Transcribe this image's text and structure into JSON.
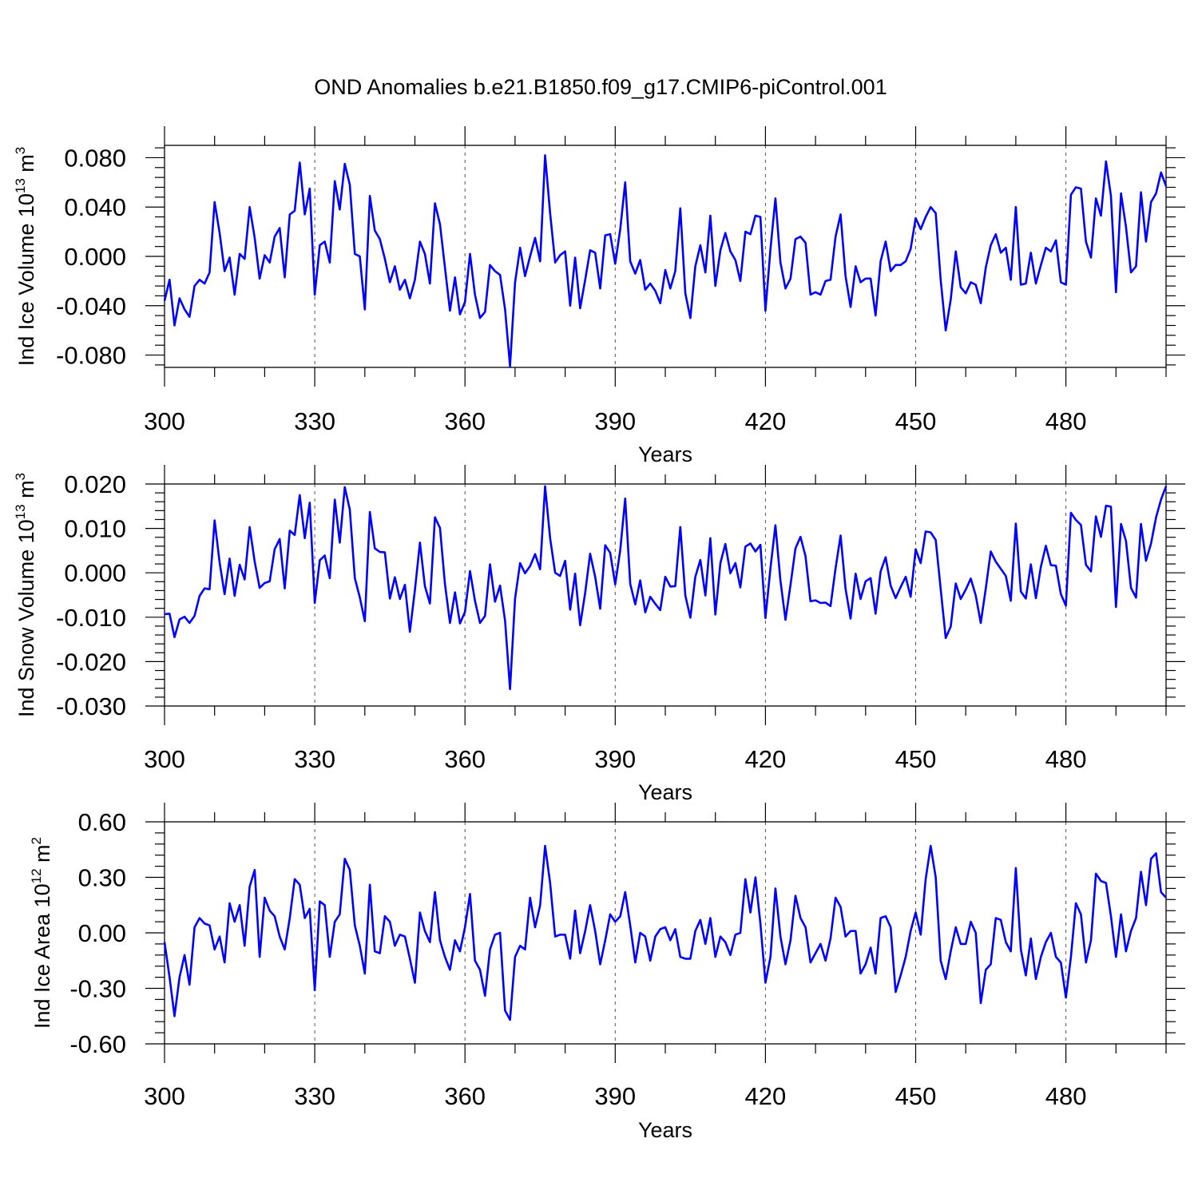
{
  "chart_data": [
    {
      "type": "line",
      "title": "OND Anomalies b.e21.B1850.f09_g17.CMIP6-piControl.001",
      "ylabel": "Ind Ice Volume 10",
      "ylabel_exp": "13",
      "ylabel_unit": " m",
      "ylabel_unit_exp": "3",
      "xlabel": "Years",
      "xlim": [
        300,
        500
      ],
      "ylim": [
        -0.09,
        0.09
      ],
      "xticks": [
        300,
        330,
        360,
        390,
        420,
        450,
        480
      ],
      "xtick_labels": [
        "300",
        "330",
        "360",
        "390",
        "420",
        "450",
        "480"
      ],
      "yticks": [
        0.08,
        0.04,
        0.0,
        -0.04,
        -0.08
      ],
      "ytick_labels": [
        "0.080",
        "0.040",
        "0.000",
        "-0.040",
        "-0.080"
      ],
      "grid": "vertical-dashed",
      "series": [
        {
          "name": "Ind Ice Volume",
          "color": "#0000ff",
          "x_start": 300,
          "x_step": 1,
          "values": [
            -0.036,
            -0.019,
            -0.056,
            -0.034,
            -0.043,
            -0.049,
            -0.024,
            -0.019,
            -0.022,
            -0.013,
            0.044,
            0.019,
            -0.012,
            -0.001,
            -0.031,
            0.002,
            -0.002,
            0.04,
            0.015,
            -0.018,
            0.001,
            -0.005,
            0.016,
            0.023,
            -0.017,
            0.034,
            0.037,
            0.076,
            0.034,
            0.055,
            -0.031,
            0.009,
            0.012,
            -0.005,
            0.061,
            0.038,
            0.075,
            0.058,
            0.002,
            0.0,
            -0.043,
            0.049,
            0.021,
            0.014,
            -0.002,
            -0.021,
            -0.008,
            -0.027,
            -0.019,
            -0.034,
            -0.019,
            0.012,
            0.002,
            -0.022,
            0.043,
            0.026,
            -0.009,
            -0.044,
            -0.017,
            -0.047,
            -0.037,
            0.002,
            -0.031,
            -0.05,
            -0.045,
            -0.007,
            -0.012,
            -0.015,
            -0.043,
            -0.089,
            -0.021,
            0.007,
            -0.016,
            0.0,
            0.015,
            -0.004,
            0.082,
            0.035,
            -0.005,
            0.001,
            0.004,
            -0.04,
            -0.001,
            -0.042,
            -0.019,
            0.005,
            0.003,
            -0.026,
            0.017,
            0.018,
            -0.006,
            0.022,
            0.06,
            -0.004,
            -0.014,
            -0.003,
            -0.027,
            -0.022,
            -0.028,
            -0.038,
            -0.011,
            -0.026,
            -0.012,
            0.039,
            -0.03,
            -0.05,
            -0.008,
            0.009,
            -0.013,
            0.033,
            -0.024,
            0.005,
            0.019,
            0.004,
            -0.003,
            -0.02,
            0.02,
            0.018,
            0.033,
            0.032,
            -0.044,
            0.006,
            0.047,
            -0.005,
            -0.026,
            -0.018,
            0.014,
            0.016,
            0.011,
            -0.031,
            -0.029,
            -0.031,
            -0.02,
            -0.019,
            0.016,
            0.034,
            -0.016,
            -0.041,
            -0.008,
            -0.021,
            -0.018,
            -0.018,
            -0.048,
            -0.004,
            0.012,
            -0.012,
            -0.007,
            -0.007,
            -0.004,
            0.006,
            0.031,
            0.022,
            0.032,
            0.04,
            0.035,
            -0.019,
            -0.06,
            -0.035,
            0.004,
            -0.025,
            -0.03,
            -0.021,
            -0.023,
            -0.038,
            -0.009,
            0.009,
            0.018,
            0.003,
            0.007,
            -0.019,
            0.04,
            -0.023,
            -0.022,
            0.003,
            -0.022,
            -0.007,
            0.007,
            0.004,
            0.013,
            -0.021,
            -0.023,
            0.05,
            0.056,
            0.055,
            0.012,
            -0.001,
            0.047,
            0.033,
            0.077,
            0.049,
            -0.029,
            0.051,
            0.024,
            -0.013,
            -0.008,
            0.052,
            0.012,
            0.044,
            0.051,
            0.068,
            0.057
          ]
        }
      ]
    },
    {
      "type": "line",
      "ylabel": "Ind Snow Volume 10",
      "ylabel_exp": "13",
      "ylabel_unit": " m",
      "ylabel_unit_exp": "3",
      "xlabel": "Years",
      "xlim": [
        300,
        500
      ],
      "ylim": [
        -0.03,
        0.02
      ],
      "xticks": [
        300,
        330,
        360,
        390,
        420,
        450,
        480
      ],
      "xtick_labels": [
        "300",
        "330",
        "360",
        "390",
        "420",
        "450",
        "480"
      ],
      "yticks": [
        0.02,
        0.01,
        0.0,
        -0.01,
        -0.02,
        -0.03
      ],
      "ytick_labels": [
        "0.020",
        "0.010",
        "0.000",
        "-0.010",
        "-0.020",
        "-0.030"
      ],
      "grid": "vertical-dashed",
      "series": [
        {
          "name": "Ind Snow Volume",
          "color": "#0000ff",
          "x_start": 300,
          "x_step": 1,
          "values": [
            -0.0093,
            -0.0092,
            -0.0145,
            -0.0105,
            -0.0099,
            -0.0113,
            -0.0097,
            -0.0052,
            -0.0035,
            -0.0037,
            0.0118,
            0.0023,
            -0.0048,
            0.0032,
            -0.0052,
            0.0018,
            -0.0015,
            0.0103,
            0.0025,
            -0.0034,
            -0.0023,
            -0.0019,
            0.0053,
            0.0076,
            -0.0035,
            0.0095,
            0.0085,
            0.0175,
            0.0078,
            0.0158,
            -0.0068,
            0.0028,
            0.0039,
            -0.0012,
            0.0165,
            0.0068,
            0.0193,
            0.0142,
            -0.0012,
            -0.0055,
            -0.0109,
            0.0137,
            0.0055,
            0.0047,
            0.0046,
            -0.0058,
            -0.001,
            -0.0059,
            -0.0027,
            -0.0133,
            -0.0039,
            0.0068,
            -0.003,
            -0.0069,
            0.0125,
            0.0101,
            -0.0025,
            -0.0113,
            -0.0044,
            -0.0114,
            -0.0088,
            0.0004,
            -0.0063,
            -0.0113,
            -0.0097,
            0.0019,
            -0.0065,
            -0.0029,
            -0.0108,
            -0.0262,
            -0.0058,
            0.0022,
            -0.0001,
            0.0015,
            0.0042,
            0.0008,
            0.0195,
            0.0078,
            0.0,
            -0.0007,
            0.0027,
            -0.0083,
            -0.0002,
            -0.0118,
            -0.0045,
            0.0043,
            -0.0009,
            -0.0081,
            0.0062,
            0.0045,
            -0.0026,
            0.0051,
            0.0167,
            -0.0025,
            -0.0071,
            -0.0017,
            -0.0089,
            -0.0054,
            -0.007,
            -0.0084,
            -0.0009,
            -0.0031,
            -0.003,
            0.0103,
            -0.0051,
            -0.0101,
            -0.0009,
            0.0029,
            -0.0051,
            0.0078,
            -0.0094,
            0.0022,
            0.0065,
            -0.0001,
            0.0022,
            -0.0033,
            0.0059,
            0.0066,
            0.0048,
            0.0063,
            -0.0102,
            0.0011,
            0.0107,
            -0.0018,
            -0.0106,
            -0.0027,
            0.0055,
            0.0081,
            0.0037,
            -0.0064,
            -0.0062,
            -0.0068,
            -0.0067,
            -0.0075,
            0.001,
            0.0084,
            -0.0036,
            -0.0103,
            -0.0002,
            -0.0059,
            -0.0019,
            -0.0012,
            -0.0092,
            0.0003,
            0.0035,
            -0.0029,
            -0.0057,
            -0.0032,
            -0.0009,
            -0.0054,
            0.0053,
            0.0022,
            0.0093,
            0.0091,
            0.0074,
            -0.0036,
            -0.0147,
            -0.0121,
            -0.0024,
            -0.0059,
            -0.0038,
            -0.0013,
            -0.0051,
            -0.0113,
            -0.0035,
            0.0048,
            0.0025,
            0.0009,
            -0.0007,
            -0.0063,
            0.0111,
            -0.0042,
            -0.0058,
            0.0019,
            -0.0057,
            0.0014,
            0.0061,
            0.0017,
            0.0016,
            -0.0048,
            -0.0074,
            0.0135,
            0.0119,
            0.0108,
            0.0018,
            0.0003,
            0.0127,
            0.0081,
            0.0151,
            0.0149,
            -0.0077,
            0.011,
            0.0072,
            -0.0034,
            -0.0056,
            0.011,
            0.0027,
            0.0066,
            0.0125,
            0.0165,
            0.0195
          ]
        }
      ]
    },
    {
      "type": "line",
      "ylabel": "Ind Ice Area 10",
      "ylabel_exp": "12",
      "ylabel_unit": " m",
      "ylabel_unit_exp": "2",
      "xlabel": "Years",
      "xlim": [
        300,
        500
      ],
      "ylim": [
        -0.6,
        0.6
      ],
      "xticks": [
        300,
        330,
        360,
        390,
        420,
        450,
        480
      ],
      "xtick_labels": [
        "300",
        "330",
        "360",
        "390",
        "420",
        "450",
        "480"
      ],
      "yticks": [
        0.6,
        0.3,
        0.0,
        -0.3,
        -0.6
      ],
      "ytick_labels": [
        "0.60",
        "0.30",
        "0.00",
        "-0.30",
        "-0.60"
      ],
      "grid": "vertical-dashed",
      "series": [
        {
          "name": "Ind Ice Area",
          "color": "#0000ff",
          "x_start": 300,
          "x_step": 1,
          "values": [
            -0.05,
            -0.24,
            -0.45,
            -0.24,
            -0.12,
            -0.28,
            0.03,
            0.08,
            0.05,
            0.04,
            -0.09,
            -0.02,
            -0.16,
            0.16,
            0.06,
            0.15,
            -0.07,
            0.25,
            0.34,
            -0.13,
            0.19,
            0.12,
            0.09,
            -0.02,
            -0.09,
            0.08,
            0.29,
            0.26,
            0.08,
            0.13,
            -0.31,
            0.17,
            0.15,
            -0.13,
            0.06,
            0.1,
            0.4,
            0.34,
            0.04,
            -0.07,
            -0.22,
            0.26,
            -0.1,
            -0.11,
            0.09,
            0.06,
            -0.07,
            -0.01,
            -0.02,
            -0.14,
            -0.27,
            0.11,
            0.01,
            -0.05,
            0.22,
            -0.04,
            -0.13,
            -0.2,
            -0.04,
            -0.1,
            0.03,
            0.21,
            -0.15,
            -0.2,
            -0.34,
            -0.09,
            -0.01,
            0.0,
            -0.42,
            -0.47,
            -0.13,
            -0.07,
            -0.09,
            0.19,
            0.03,
            0.15,
            0.47,
            0.27,
            -0.02,
            -0.01,
            -0.01,
            -0.14,
            0.12,
            -0.11,
            0.01,
            0.15,
            0.01,
            -0.17,
            -0.04,
            0.1,
            0.06,
            0.09,
            0.22,
            0.04,
            -0.16,
            0.0,
            -0.02,
            -0.15,
            -0.02,
            0.02,
            0.03,
            -0.04,
            0.02,
            -0.13,
            -0.14,
            -0.14,
            0.01,
            0.07,
            -0.06,
            0.08,
            -0.13,
            -0.02,
            -0.05,
            -0.12,
            -0.01,
            0.0,
            0.29,
            0.11,
            0.3,
            0.05,
            -0.27,
            -0.13,
            0.24,
            -0.02,
            -0.17,
            -0.04,
            0.2,
            0.08,
            0.03,
            -0.16,
            -0.11,
            -0.06,
            -0.15,
            -0.03,
            0.19,
            0.14,
            -0.02,
            0.01,
            0.01,
            -0.22,
            -0.17,
            -0.08,
            -0.22,
            0.08,
            0.09,
            0.03,
            -0.32,
            -0.23,
            -0.13,
            0.01,
            0.11,
            -0.01,
            0.29,
            0.47,
            0.3,
            -0.15,
            -0.25,
            -0.1,
            0.03,
            -0.06,
            -0.06,
            0.06,
            0.0,
            -0.38,
            -0.2,
            -0.17,
            0.08,
            0.07,
            -0.05,
            -0.1,
            0.35,
            -0.09,
            -0.23,
            -0.03,
            -0.25,
            -0.13,
            -0.05,
            0.0,
            -0.13,
            -0.16,
            -0.35,
            -0.13,
            0.16,
            0.1,
            -0.16,
            -0.04,
            0.32,
            0.28,
            0.27,
            0.09,
            -0.13,
            0.1,
            -0.1,
            0.01,
            0.08,
            0.33,
            0.15,
            0.4,
            0.43,
            0.22,
            0.19
          ]
        }
      ]
    }
  ]
}
